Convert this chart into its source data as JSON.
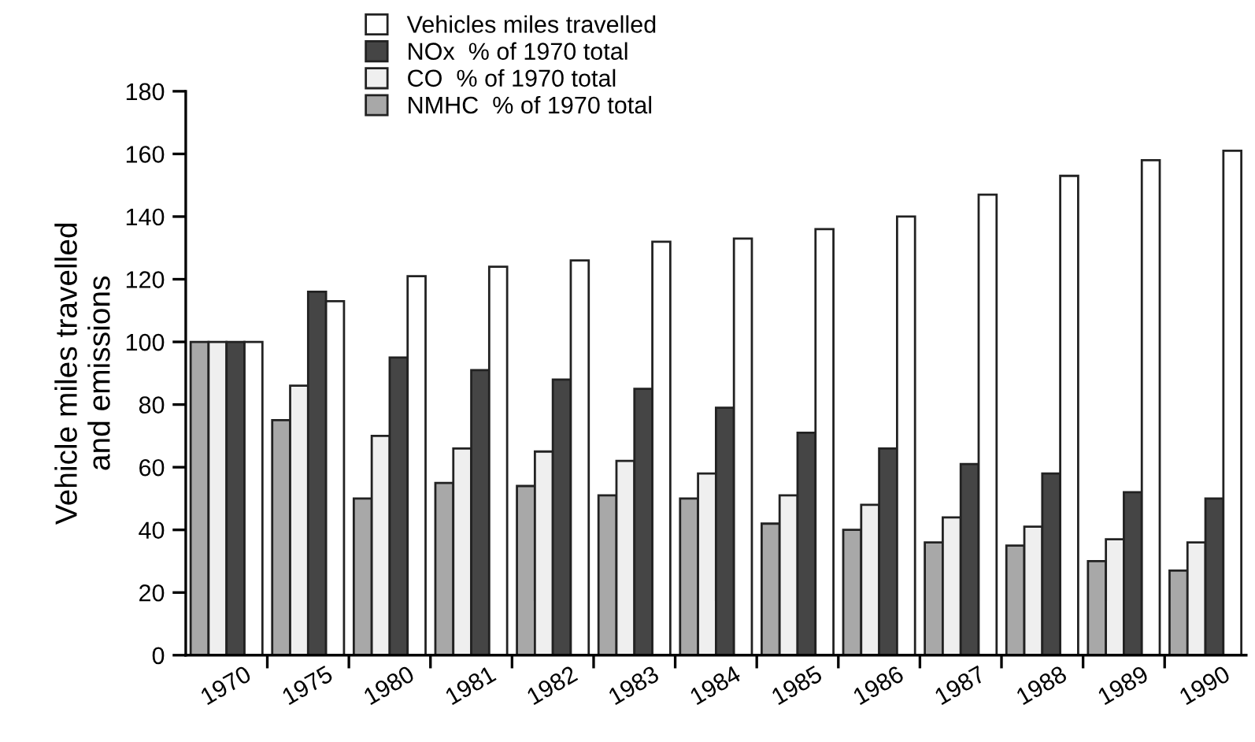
{
  "chart_data": {
    "type": "bar",
    "ylabel": "Vehicle miles travelled\nand emissions",
    "categories": [
      "1970",
      "1975",
      "1980",
      "1981",
      "1982",
      "1983",
      "1984",
      "1985",
      "1986",
      "1987",
      "1988",
      "1989",
      "1990"
    ],
    "series": [
      {
        "name": "NMHC  % of 1970 total",
        "color": "#a8a8a8",
        "values": [
          100,
          75,
          50,
          55,
          54,
          51,
          50,
          42,
          40,
          36,
          35,
          30,
          27
        ]
      },
      {
        "name": "CO  % of 1970 total",
        "color": "#efefef",
        "values": [
          100,
          86,
          70,
          66,
          65,
          62,
          58,
          51,
          48,
          44,
          41,
          37,
          36
        ]
      },
      {
        "name": "NOx  % of 1970 total",
        "color": "#454545",
        "values": [
          100,
          116,
          95,
          91,
          88,
          85,
          79,
          71,
          66,
          61,
          58,
          52,
          50
        ]
      },
      {
        "name": "Vehicles miles travelled",
        "color": "#ffffff",
        "values": [
          100,
          113,
          121,
          124,
          126,
          132,
          133,
          136,
          140,
          147,
          153,
          158,
          161
        ]
      }
    ],
    "ylim": [
      0,
      180
    ],
    "yticks": [
      0,
      20,
      40,
      60,
      80,
      100,
      120,
      140,
      160,
      180
    ],
    "grid": false,
    "legend": "top"
  }
}
